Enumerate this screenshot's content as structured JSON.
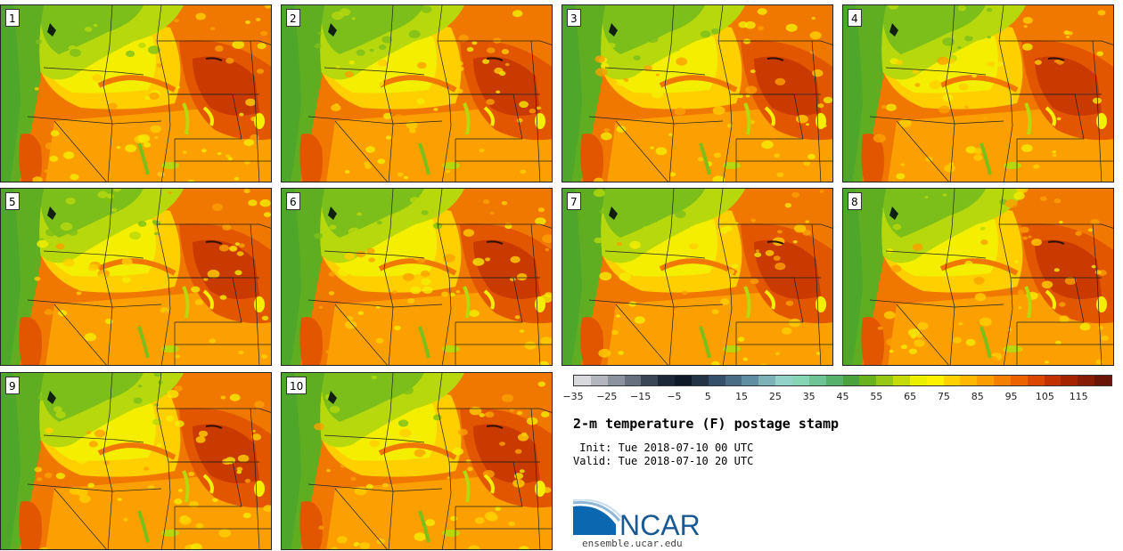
{
  "panels": [
    {
      "label": "1"
    },
    {
      "label": "2"
    },
    {
      "label": "3"
    },
    {
      "label": "4"
    },
    {
      "label": "5"
    },
    {
      "label": "6"
    },
    {
      "label": "7"
    },
    {
      "label": "8"
    },
    {
      "label": "9"
    },
    {
      "label": "10"
    }
  ],
  "colorbar": {
    "colors": [
      "#d7d9dc",
      "#b3b6bc",
      "#8c93a0",
      "#66707f",
      "#3a4656",
      "#1c2838",
      "#0e1a28",
      "#223446",
      "#34506a",
      "#4a6d86",
      "#5f8ea3",
      "#7db3b8",
      "#92d2c8",
      "#86d6b6",
      "#6ec494",
      "#56b26a",
      "#4aa23c",
      "#68b21e",
      "#96c814",
      "#c6dc0a",
      "#eaf000",
      "#fff200",
      "#ffd200",
      "#fdb800",
      "#fb9c00",
      "#f57f00",
      "#ec6200",
      "#db4700",
      "#c23200",
      "#a52400",
      "#861b06",
      "#6b1408"
    ],
    "tick_labels": [
      "−35",
      "−25",
      "−15",
      "−5",
      "5",
      "15",
      "25",
      "35",
      "45",
      "55",
      "65",
      "75",
      "85",
      "95",
      "105",
      "115"
    ]
  },
  "title": "2-m temperature (F) postage stamp",
  "init_line": " Init: Tue 2018-07-10 00 UTC",
  "valid_line": "Valid: Tue 2018-07-10 20 UTC",
  "logo": {
    "text": "NCAR"
  },
  "website": "ensemble.ucar.edu"
}
